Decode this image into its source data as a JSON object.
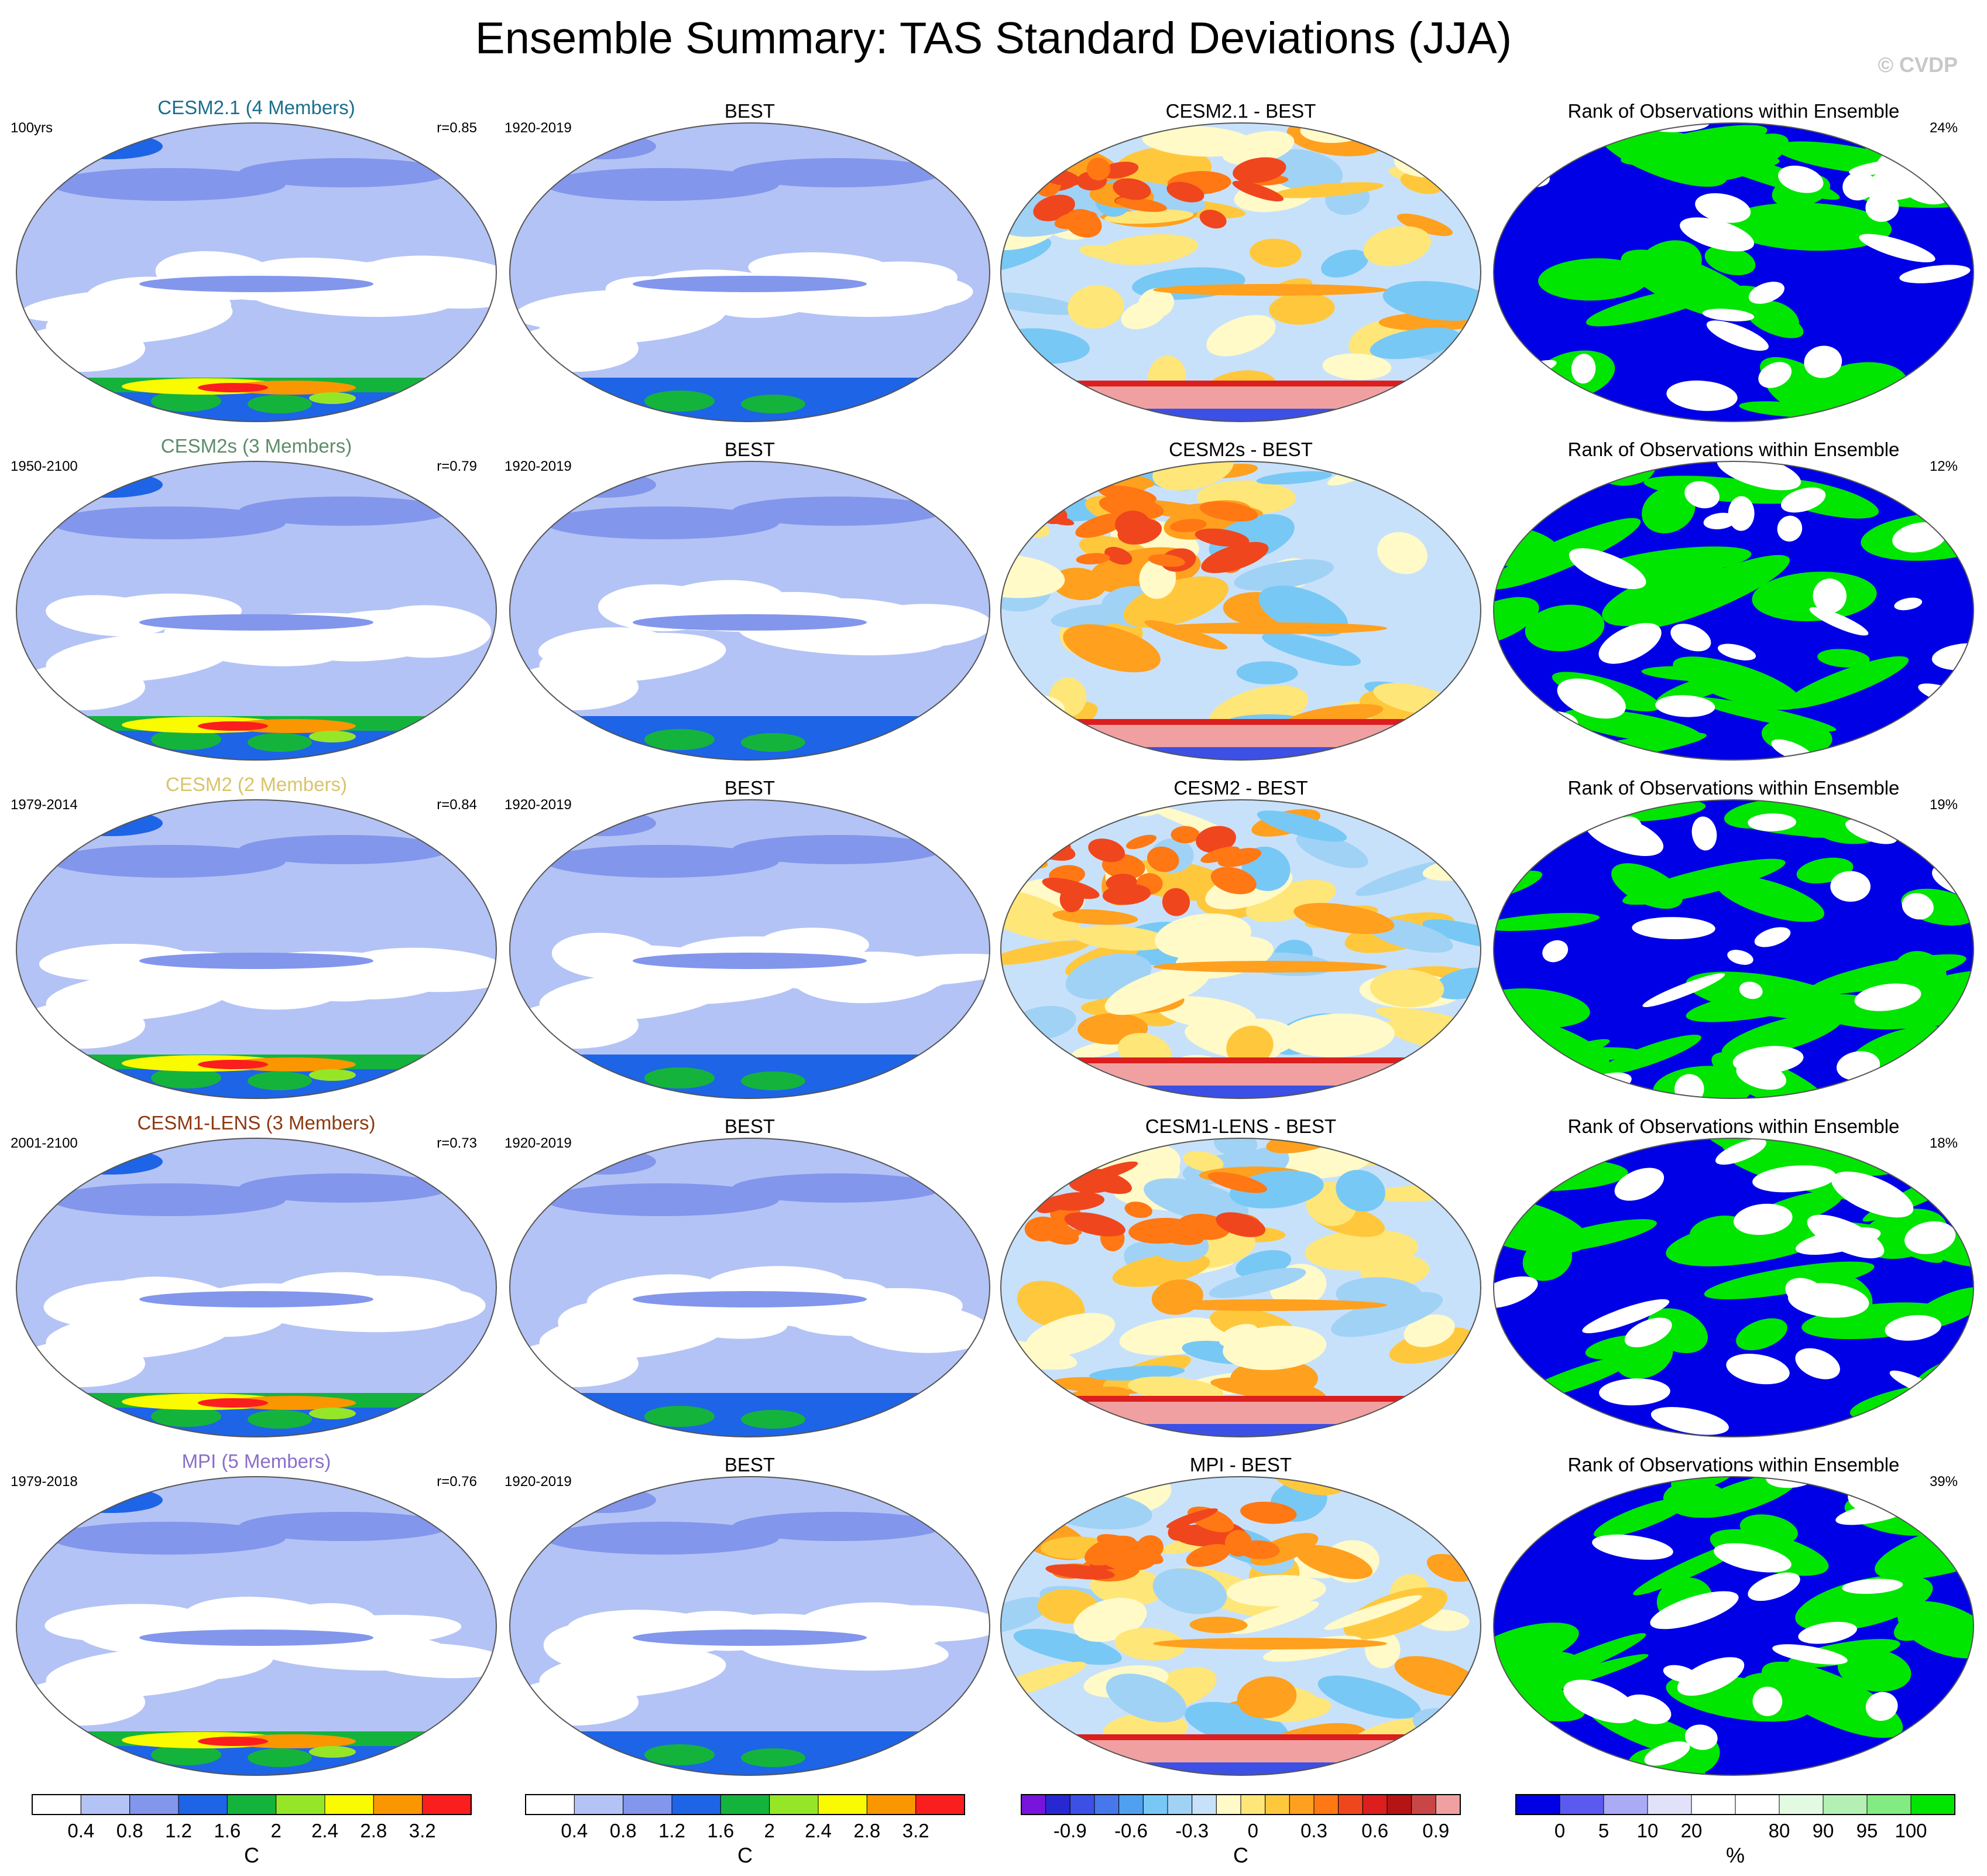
{
  "title": "Ensemble Summary: TAS Standard Deviations (JJA)",
  "watermark": "© CVDP",
  "rows": [
    {
      "model": {
        "title": "CESM2.1 (4 Members)",
        "color": "#1a6e8e",
        "period": "100yrs",
        "r": "r=0.85"
      },
      "obs": {
        "title": "BEST",
        "period": "1920-2019"
      },
      "diff": {
        "title": "CESM2.1 - BEST"
      },
      "rank": {
        "title": "Rank of Observations within Ensemble",
        "pct": "24%"
      }
    },
    {
      "model": {
        "title": "CESM2s (3 Members)",
        "color": "#5e8c6a",
        "period": "1950-2100",
        "r": "r=0.79"
      },
      "obs": {
        "title": "BEST",
        "period": "1920-2019"
      },
      "diff": {
        "title": "CESM2s - BEST"
      },
      "rank": {
        "title": "Rank of Observations within Ensemble",
        "pct": "12%"
      }
    },
    {
      "model": {
        "title": "CESM2 (2 Members)",
        "color": "#d9c46a",
        "period": "1979-2014",
        "r": "r=0.84"
      },
      "obs": {
        "title": "BEST",
        "period": "1920-2019"
      },
      "diff": {
        "title": "CESM2 - BEST"
      },
      "rank": {
        "title": "Rank of Observations within Ensemble",
        "pct": "19%"
      }
    },
    {
      "model": {
        "title": "CESM1-LENS (3 Members)",
        "color": "#8b3a12",
        "period": "2001-2100",
        "r": "r=0.73"
      },
      "obs": {
        "title": "BEST",
        "period": "1920-2019"
      },
      "diff": {
        "title": "CESM1-LENS - BEST"
      },
      "rank": {
        "title": "Rank of Observations within Ensemble",
        "pct": "18%"
      }
    },
    {
      "model": {
        "title": "MPI (5 Members)",
        "color": "#8a6fc9",
        "period": "1979-2018",
        "r": "r=0.76"
      },
      "obs": {
        "title": "BEST",
        "period": "1920-2019"
      },
      "diff": {
        "title": "MPI - BEST"
      },
      "rank": {
        "title": "Rank of Observations within Ensemble",
        "pct": "39%"
      }
    }
  ],
  "colorbars": [
    {
      "unit": "C",
      "colors": [
        "#ffffff",
        "#b4c3f5",
        "#8296ec",
        "#1e64e6",
        "#14b43c",
        "#96e628",
        "#fafa00",
        "#fa9600",
        "#fa1e1e"
      ],
      "ticks": [
        "0.4",
        "0.8",
        "1.2",
        "1.6",
        "2",
        "2.4",
        "2.8",
        "3.2"
      ]
    },
    {
      "unit": "C",
      "colors": [
        "#ffffff",
        "#b4c3f5",
        "#8296ec",
        "#1e64e6",
        "#14b43c",
        "#96e628",
        "#fafa00",
        "#fa9600",
        "#fa1e1e"
      ],
      "ticks": [
        "0.4",
        "0.8",
        "1.2",
        "1.6",
        "2",
        "2.4",
        "2.8",
        "3.2"
      ]
    },
    {
      "unit": "C",
      "colors": [
        "#7814dc",
        "#2828d2",
        "#3c50e6",
        "#4678eb",
        "#50a0f0",
        "#78c8f5",
        "#a0d2f5",
        "#c8e1fa",
        "#fffac8",
        "#ffe678",
        "#ffc83c",
        "#ffa01e",
        "#ff7814",
        "#f0461e",
        "#dc1e1e",
        "#b41414",
        "#c84646",
        "#f0a0a0"
      ],
      "ticks": [
        "-0.9",
        "-0.6",
        "-0.3",
        "0",
        "0.3",
        "0.6",
        "0.9"
      ]
    },
    {
      "unit": "%",
      "colors": [
        "#0000e6",
        "#5a5af0",
        "#aaaaf5",
        "#e1e1fa",
        "#ffffff",
        "#ffffff",
        "#e1fae1",
        "#b4f0b4",
        "#82eb82",
        "#00e600"
      ],
      "ticks": [
        "0",
        "5",
        "10",
        "20",
        "80",
        "90",
        "95",
        "100"
      ]
    }
  ],
  "chart_data": {
    "type": "heatmap",
    "title": "Ensemble Summary: TAS Standard Deviations (JJA)",
    "description_panels": "5 rows x 4 columns of global maps",
    "columns": [
      "ensemble mean std dev",
      "observations (BEST)",
      "difference",
      "rank of observations"
    ],
    "pattern_correlations": {
      "CESM2.1": 0.85,
      "CESM2s": 0.79,
      "CESM2": 0.84,
      "CESM1-LENS": 0.73,
      "MPI": 0.76
    },
    "rank_percent": {
      "CESM2.1": 24,
      "CESM2s": 12,
      "CESM2": 19,
      "CESM1-LENS": 18,
      "MPI": 39
    },
    "colorbar_std_c": [
      0.4,
      0.8,
      1.2,
      1.6,
      2,
      2.4,
      2.8,
      3.2
    ],
    "colorbar_diff_c": [
      -0.9,
      -0.6,
      -0.3,
      0,
      0.3,
      0.6,
      0.9
    ],
    "colorbar_rank_pct": [
      0,
      5,
      10,
      20,
      80,
      90,
      95,
      100
    ]
  }
}
